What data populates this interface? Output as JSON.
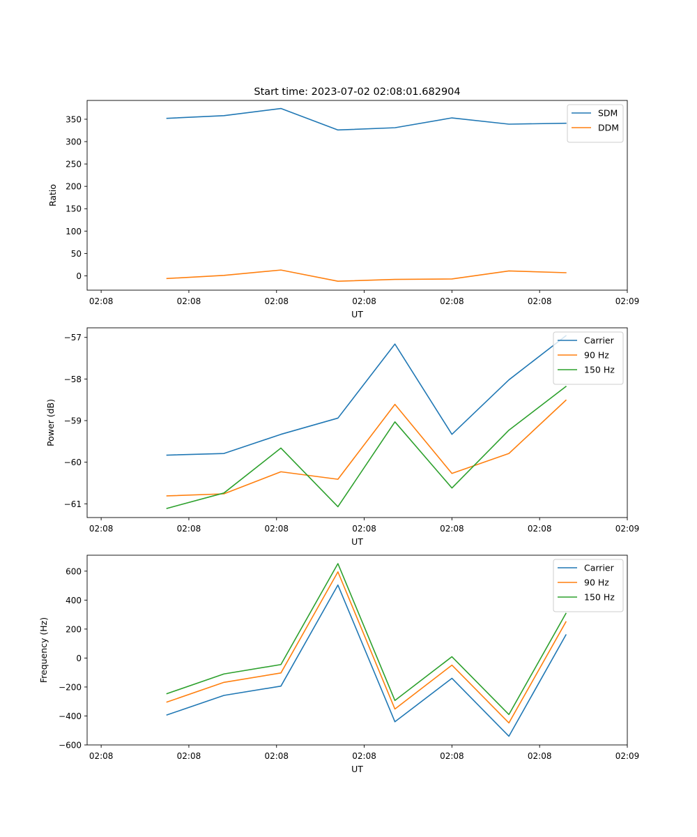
{
  "figure_title": "Start time: 2023-07-02 02:08:01.682904",
  "colors": {
    "blue": "#1f77b4",
    "orange": "#ff7f0e",
    "green": "#2ca02c"
  },
  "chart_data": [
    {
      "type": "line",
      "title": "Start time: 2023-07-02 02:08:01.682904",
      "xlabel": "UT",
      "ylabel": "Ratio",
      "x": [
        0.75,
        1.4,
        2.05,
        2.7,
        3.35,
        4.0,
        4.65,
        5.3
      ],
      "xlim": [
        -0.16,
        6.0
      ],
      "xticks": [
        0,
        1,
        2,
        3,
        4,
        5,
        6
      ],
      "xtick_labels": [
        "02:08",
        "02:08",
        "02:08",
        "02:08",
        "02:08",
        "02:08",
        "02:09"
      ],
      "ylim": [
        -32,
        392
      ],
      "yticks": [
        0,
        50,
        100,
        150,
        200,
        250,
        300,
        350
      ],
      "ytick_labels": [
        "0",
        "50",
        "100",
        "150",
        "200",
        "250",
        "300",
        "350"
      ],
      "legend_position": "upper-right",
      "series": [
        {
          "name": "SDM",
          "color": "#1f77b4",
          "values": [
            352,
            358,
            374,
            326,
            331,
            353,
            339,
            341
          ]
        },
        {
          "name": "DDM",
          "color": "#ff7f0e",
          "values": [
            -6,
            1,
            13,
            -12,
            -8,
            -7,
            11,
            7
          ]
        }
      ]
    },
    {
      "type": "line",
      "title": "",
      "xlabel": "UT",
      "ylabel": "Power (dB)",
      "x": [
        0.75,
        1.4,
        2.05,
        2.7,
        3.35,
        4.0,
        4.65,
        5.3
      ],
      "xlim": [
        -0.16,
        6.0
      ],
      "xticks": [
        0,
        1,
        2,
        3,
        4,
        5,
        6
      ],
      "xtick_labels": [
        "02:08",
        "02:08",
        "02:08",
        "02:08",
        "02:08",
        "02:08",
        "02:09"
      ],
      "ylim": [
        -61.33,
        -56.77
      ],
      "yticks": [
        -61,
        -60,
        -59,
        -58,
        -57
      ],
      "ytick_labels": [
        "−61",
        "−60",
        "−59",
        "−58",
        "−57"
      ],
      "legend_position": "upper-right",
      "series": [
        {
          "name": "Carrier",
          "color": "#1f77b4",
          "values": [
            -59.83,
            -59.79,
            -59.33,
            -58.94,
            -57.16,
            -59.33,
            -58.02,
            -56.96
          ]
        },
        {
          "name": "90 Hz",
          "color": "#ff7f0e",
          "values": [
            -60.81,
            -60.76,
            -60.23,
            -60.41,
            -58.61,
            -60.27,
            -59.79,
            -58.51
          ]
        },
        {
          "name": "150 Hz",
          "color": "#2ca02c",
          "values": [
            -61.11,
            -60.74,
            -59.66,
            -61.07,
            -59.03,
            -60.62,
            -59.23,
            -58.18
          ]
        }
      ]
    },
    {
      "type": "line",
      "title": "",
      "xlabel": "UT",
      "ylabel": "Frequency (Hz)",
      "x": [
        0.75,
        1.4,
        2.05,
        2.7,
        3.35,
        4.0,
        4.65,
        5.3
      ],
      "xlim": [
        -0.16,
        6.0
      ],
      "xticks": [
        0,
        1,
        2,
        3,
        4,
        5,
        6
      ],
      "xtick_labels": [
        "02:08",
        "02:08",
        "02:08",
        "02:08",
        "02:08",
        "02:08",
        "02:09"
      ],
      "ylim": [
        -600,
        710
      ],
      "yticks": [
        -600,
        -400,
        -200,
        0,
        200,
        400,
        600
      ],
      "ytick_labels": [
        "−600",
        "−400",
        "−200",
        "0",
        "200",
        "400",
        "600"
      ],
      "legend_position": "upper-right",
      "series": [
        {
          "name": "Carrier",
          "color": "#1f77b4",
          "values": [
            -393,
            -258,
            -194,
            504,
            -440,
            -140,
            -540,
            160
          ]
        },
        {
          "name": "90 Hz",
          "color": "#ff7f0e",
          "values": [
            -304,
            -168,
            -103,
            595,
            -352,
            -49,
            -448,
            250
          ]
        },
        {
          "name": "150 Hz",
          "color": "#2ca02c",
          "values": [
            -246,
            -110,
            -45,
            652,
            -293,
            9,
            -390,
            308
          ]
        }
      ]
    }
  ]
}
